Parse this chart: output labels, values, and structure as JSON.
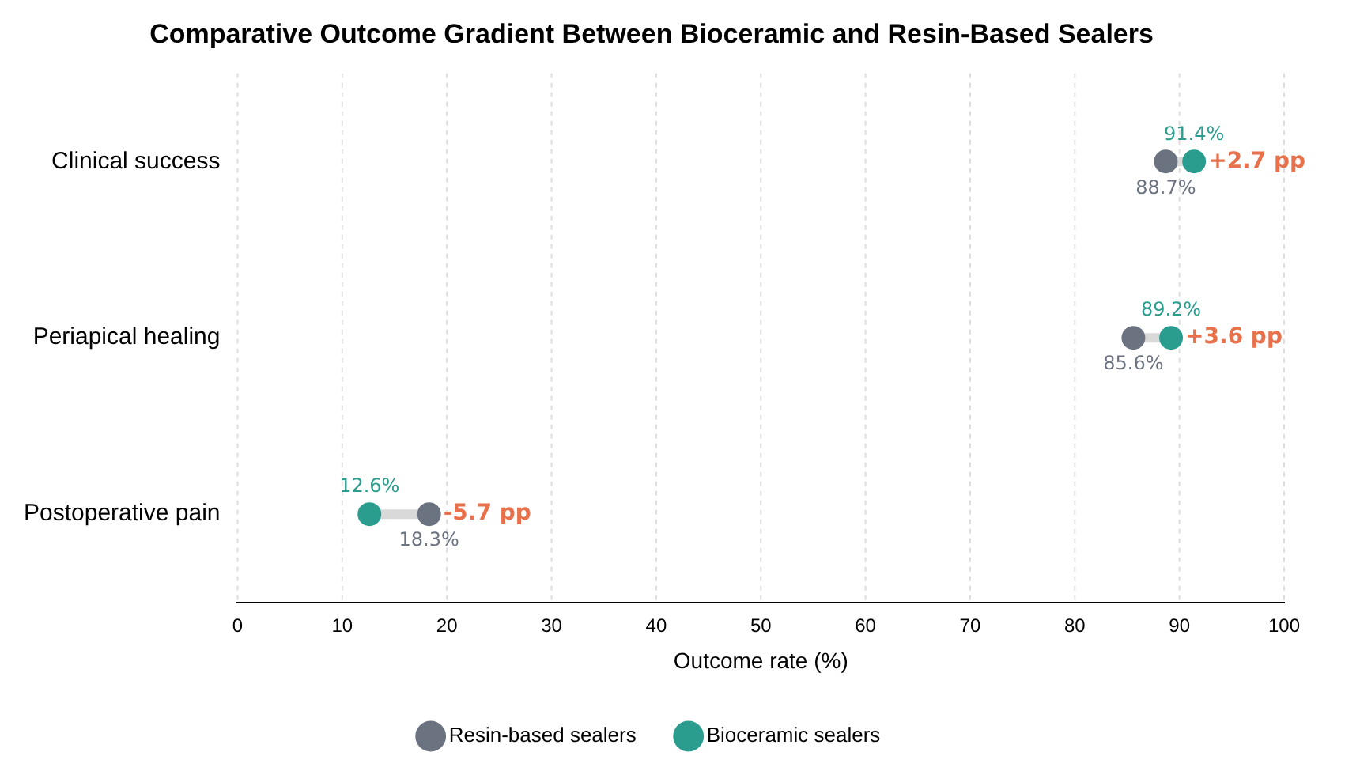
{
  "chart_data": {
    "type": "scatter",
    "orientation": "horizontal",
    "title": "Comparative Outcome Gradient Between Bioceramic and Resin-Based Sealers",
    "xlabel": "Outcome rate (%)",
    "categories": [
      "Clinical success",
      "Periapical healing",
      "Postoperative pain"
    ],
    "series": [
      {
        "name": "Resin-based sealers",
        "color": "#6b7280",
        "values": [
          88.7,
          85.6,
          18.3
        ],
        "value_labels": [
          "88.7%",
          "85.6%",
          "18.3%"
        ]
      },
      {
        "name": "Bioceramic sealers",
        "color": "#2a9d8f",
        "values": [
          91.4,
          89.2,
          12.6
        ],
        "value_labels": [
          "91.4%",
          "89.2%",
          "12.6%"
        ]
      }
    ],
    "xlim": [
      0,
      100
    ],
    "xticks": [
      0,
      10,
      20,
      30,
      40,
      50,
      60,
      70,
      80,
      90,
      100
    ],
    "grid": "x",
    "legend": "bottom",
    "marker": "circle",
    "annotations": [
      {
        "text": "+2.7 pp",
        "x": 91.4,
        "y": "Clinical success"
      },
      {
        "text": "+3.6 pp",
        "x": 89.2,
        "y": "Periapical healing"
      },
      {
        "text": "-5.7 pp",
        "x": 18.3,
        "y": "Postoperative pain"
      }
    ]
  }
}
